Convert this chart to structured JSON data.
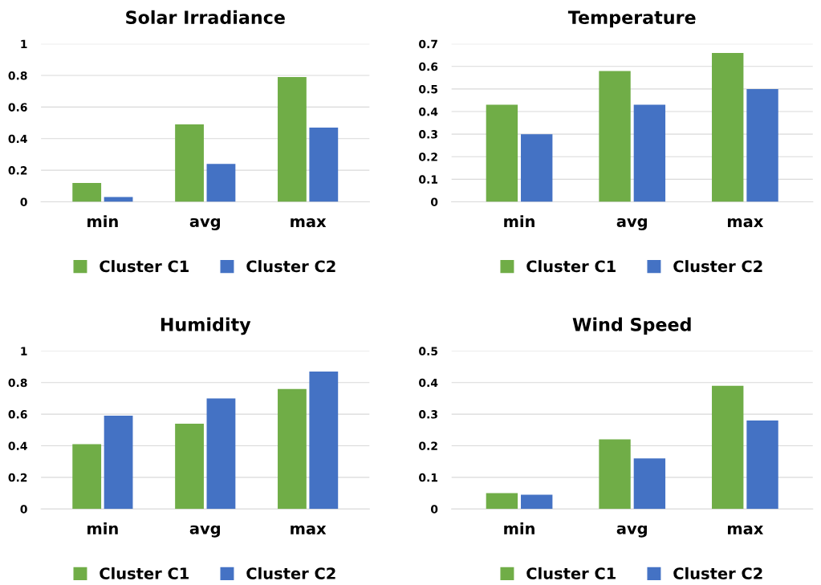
{
  "chart_data": [
    {
      "type": "bar",
      "title": "Solar Irradiance",
      "categories": [
        "min",
        "avg",
        "max"
      ],
      "series": [
        {
          "name": "Cluster C1",
          "color": "#70ad47",
          "values": [
            0.12,
            0.49,
            0.79
          ]
        },
        {
          "name": "Cluster C2",
          "color": "#4472c4",
          "values": [
            0.03,
            0.24,
            0.47
          ]
        }
      ],
      "ylim": [
        0,
        1
      ],
      "yticks": [
        0,
        0.2,
        0.4,
        0.6,
        0.8,
        1
      ],
      "grid": "y",
      "legend": "bottom"
    },
    {
      "type": "bar",
      "title": "Temperature",
      "categories": [
        "min",
        "avg",
        "max"
      ],
      "series": [
        {
          "name": "Cluster C1",
          "color": "#70ad47",
          "values": [
            0.43,
            0.58,
            0.66
          ]
        },
        {
          "name": "Cluster C2",
          "color": "#4472c4",
          "values": [
            0.3,
            0.43,
            0.5
          ]
        }
      ],
      "ylim": [
        0,
        0.7
      ],
      "yticks": [
        0,
        0.1,
        0.2,
        0.3,
        0.4,
        0.5,
        0.6,
        0.7
      ],
      "grid": "y",
      "legend": "bottom"
    },
    {
      "type": "bar",
      "title": "Humidity",
      "categories": [
        "min",
        "avg",
        "max"
      ],
      "series": [
        {
          "name": "Cluster C1",
          "color": "#70ad47",
          "values": [
            0.41,
            0.54,
            0.76
          ]
        },
        {
          "name": "Cluster C2",
          "color": "#4472c4",
          "values": [
            0.59,
            0.7,
            0.87
          ]
        }
      ],
      "ylim": [
        0,
        1
      ],
      "yticks": [
        0,
        0.2,
        0.4,
        0.6,
        0.8,
        1
      ],
      "grid": "y",
      "legend": "bottom"
    },
    {
      "type": "bar",
      "title": "Wind Speed",
      "categories": [
        "min",
        "avg",
        "max"
      ],
      "series": [
        {
          "name": "Cluster C1",
          "color": "#70ad47",
          "values": [
            0.05,
            0.22,
            0.39
          ]
        },
        {
          "name": "Cluster C2",
          "color": "#4472c4",
          "values": [
            0.045,
            0.16,
            0.28
          ]
        }
      ],
      "ylim": [
        0,
        0.5
      ],
      "yticks": [
        0,
        0.1,
        0.2,
        0.3,
        0.4,
        0.5
      ],
      "grid": "y",
      "legend": "bottom"
    }
  ]
}
